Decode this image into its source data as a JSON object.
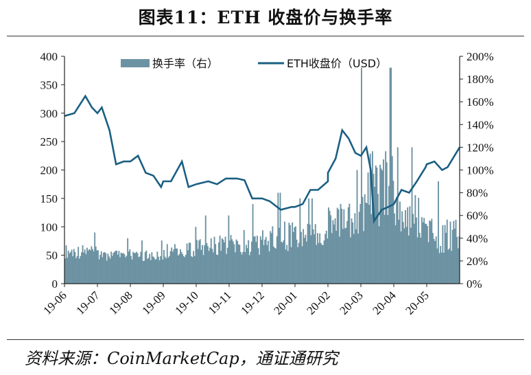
{
  "page": {
    "title": "图表11：ETH 收盘价与换手率",
    "source": "资料来源：CoinMarketCap，通证通研究"
  },
  "colors": {
    "bar": "#6d93a3",
    "line": "#1a5f82",
    "axis": "#222222"
  },
  "chart_data": {
    "type": "bar+line",
    "title": "图表11：ETH 收盘价与换手率",
    "x_tick_labels": [
      "19-06",
      "19-07",
      "19-08",
      "19-09",
      "19-10",
      "19-11",
      "19-12",
      "20-01",
      "20-02",
      "20-03",
      "20-04",
      "20-05"
    ],
    "y_left": {
      "ticks": [
        "0",
        "50",
        "100",
        "150",
        "200",
        "250",
        "300",
        "350",
        "400"
      ],
      "range": [
        0,
        400
      ]
    },
    "y_right": {
      "ticks": [
        "0%",
        "20%",
        "40%",
        "60%",
        "80%",
        "100%",
        "120%",
        "140%",
        "160%",
        "180%",
        "200%"
      ],
      "range": [
        0,
        200
      ]
    },
    "legend": {
      "placement": "top",
      "bar_label": "换手率（右）",
      "line_label": "ETH收盘价（USD）"
    },
    "series": [
      {
        "name": "ETH收盘价（USD）",
        "type": "line",
        "axis": "left",
        "points": [
          [
            "19-06",
            295
          ],
          [
            "19-06-10",
            300
          ],
          [
            "19-06-20",
            330
          ],
          [
            "19-06-26",
            310
          ],
          [
            "19-07",
            300
          ],
          [
            "19-07-05",
            310
          ],
          [
            "19-07-12",
            270
          ],
          [
            "19-07-18",
            210
          ],
          [
            "19-07-25",
            215
          ],
          [
            "19-08",
            215
          ],
          [
            "19-08-08",
            225
          ],
          [
            "19-08-15",
            195
          ],
          [
            "19-08-22",
            190
          ],
          [
            "19-08-29",
            170
          ],
          [
            "19-09",
            180
          ],
          [
            "19-09-08",
            180
          ],
          [
            "19-09-18",
            215
          ],
          [
            "19-09-24",
            170
          ],
          [
            "19-10",
            175
          ],
          [
            "19-10-12",
            180
          ],
          [
            "19-10-20",
            175
          ],
          [
            "19-10-28",
            185
          ],
          [
            "19-11",
            185
          ],
          [
            "19-11-08",
            185
          ],
          [
            "19-11-15",
            182
          ],
          [
            "19-11-22",
            150
          ],
          [
            "19-11-30",
            150
          ],
          [
            "19-12",
            150
          ],
          [
            "19-12-08",
            145
          ],
          [
            "19-12-18",
            130
          ],
          [
            "19-12-28",
            135
          ],
          [
            "20-01",
            135
          ],
          [
            "20-01-08",
            140
          ],
          [
            "20-01-15",
            165
          ],
          [
            "20-01-22",
            165
          ],
          [
            "20-01-31",
            180
          ],
          [
            "20-02",
            195
          ],
          [
            "20-02-08",
            220
          ],
          [
            "20-02-14",
            270
          ],
          [
            "20-02-20",
            255
          ],
          [
            "20-02-26",
            230
          ],
          [
            "20-03",
            225
          ],
          [
            "20-03-06",
            240
          ],
          [
            "20-03-10",
            200
          ],
          [
            "20-03-13",
            110
          ],
          [
            "20-03-20",
            130
          ],
          [
            "20-03-26",
            135
          ],
          [
            "20-04",
            140
          ],
          [
            "20-04-08",
            165
          ],
          [
            "20-04-15",
            160
          ],
          [
            "20-04-22",
            180
          ],
          [
            "20-04-30",
            205
          ],
          [
            "20-05",
            210
          ],
          [
            "20-05-08",
            215
          ],
          [
            "20-05-15",
            200
          ],
          [
            "20-05-20",
            205
          ],
          [
            "20-05-31",
            240
          ]
        ]
      },
      {
        "name": "换手率（右）",
        "type": "bar",
        "axis": "right",
        "monthly_levels": [
          {
            "month": "19-06",
            "low": 22,
            "high": 45
          },
          {
            "month": "19-07",
            "low": 20,
            "high": 40
          },
          {
            "month": "19-08",
            "low": 20,
            "high": 38
          },
          {
            "month": "19-09",
            "low": 22,
            "high": 50
          },
          {
            "month": "19-10",
            "low": 24,
            "high": 60
          },
          {
            "month": "19-11",
            "low": 25,
            "high": 70
          },
          {
            "month": "19-12",
            "low": 28,
            "high": 80
          },
          {
            "month": "20-01",
            "low": 32,
            "high": 75
          },
          {
            "month": "20-02",
            "low": 40,
            "high": 100
          },
          {
            "month": "20-03",
            "low": 45,
            "high": 190
          },
          {
            "month": "20-04",
            "low": 40,
            "high": 120
          },
          {
            "month": "20-05",
            "low": 25,
            "high": 90
          }
        ]
      }
    ]
  }
}
